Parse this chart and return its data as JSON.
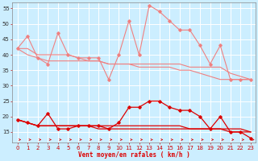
{
  "x": [
    0,
    1,
    2,
    3,
    4,
    5,
    6,
    7,
    8,
    9,
    10,
    11,
    12,
    13,
    14,
    15,
    16,
    17,
    18,
    19,
    20,
    21,
    22,
    23
  ],
  "line_rafales_light": [
    42,
    46,
    39,
    37,
    47,
    40,
    39,
    39,
    39,
    32,
    40,
    51,
    40,
    56,
    54,
    51,
    48,
    48,
    43,
    37,
    43,
    32,
    32,
    32
  ],
  "line_moy_light1": [
    42,
    42,
    40,
    40,
    40,
    40,
    39,
    38,
    38,
    37,
    37,
    37,
    37,
    37,
    37,
    37,
    37,
    36,
    36,
    36,
    36,
    34,
    33,
    32
  ],
  "line_moy_light2": [
    42,
    40,
    39,
    38,
    38,
    38,
    38,
    38,
    38,
    37,
    37,
    37,
    36,
    36,
    36,
    36,
    35,
    35,
    34,
    33,
    32,
    32,
    32,
    32
  ],
  "line_vent_dark": [
    19,
    18,
    17,
    21,
    16,
    16,
    17,
    17,
    17,
    16,
    18,
    23,
    23,
    25,
    25,
    23,
    22,
    22,
    20,
    16,
    20,
    15,
    15,
    13
  ],
  "line_moy_dark1": [
    19,
    18,
    17,
    17,
    17,
    17,
    17,
    17,
    17,
    17,
    17,
    17,
    17,
    17,
    17,
    17,
    17,
    16,
    16,
    16,
    16,
    16,
    16,
    15
  ],
  "line_moy_dark2": [
    19,
    18,
    17,
    17,
    17,
    17,
    17,
    17,
    16,
    16,
    16,
    16,
    16,
    16,
    16,
    16,
    16,
    16,
    16,
    16,
    16,
    15,
    15,
    15
  ],
  "wind_dir_y": 12.5,
  "color_light": "#f08080",
  "color_dark": "#dd0000",
  "color_dir": "#dd0000",
  "bg_color": "#cceeff",
  "grid_color": "#ffffff",
  "xlabel": "Vent moyen/en rafales ( km/h )",
  "yticks": [
    15,
    20,
    25,
    30,
    35,
    40,
    45,
    50,
    55
  ],
  "xticks": [
    0,
    1,
    2,
    3,
    4,
    5,
    6,
    7,
    8,
    9,
    10,
    11,
    12,
    13,
    14,
    15,
    16,
    17,
    18,
    19,
    20,
    21,
    22,
    23
  ],
  "ylim": [
    11.5,
    57
  ],
  "xlim": [
    -0.5,
    23.5
  ]
}
